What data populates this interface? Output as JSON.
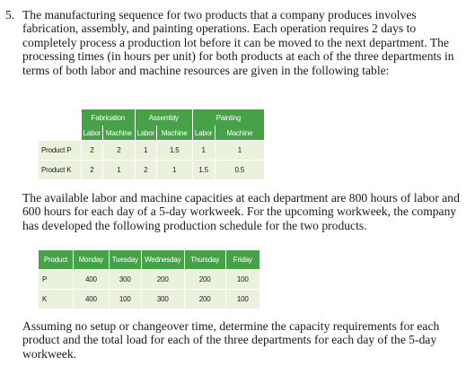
{
  "problem": {
    "number": "5.",
    "intro": "The manufacturing sequence for two products that a company produces involves fabrication, assembly, and painting operations. Each operation requires 2 days to completely process a production lot before it can be moved to the next department. The processing times (in hours per unit) for both products at each of the three departments in terms of both labor and machine resources are given in the following table:",
    "middle": "The available labor and machine capacities at each department are 800 hours of labor and 600 hours for each day of a 5-day workweek. For the upcoming workweek, the company has developed the following production schedule for the two products.",
    "closing": "Assuming no setup or changeover time, determine the capacity requirements for each product and the total load for each of the three departments for each day of the 5-day workweek."
  },
  "processing_table": {
    "departments": [
      "Fabrication",
      "Assembly",
      "Painting"
    ],
    "subheaders": [
      "Labor",
      "Machine",
      "Labor",
      "Machine",
      "Labor",
      "Machine"
    ],
    "rows": [
      {
        "product": "Product P",
        "values": [
          "2",
          "2",
          "1",
          "1.5",
          "1",
          "1"
        ]
      },
      {
        "product": "Product K",
        "values": [
          "2",
          "1",
          "2",
          "1",
          "1.5",
          "0.5"
        ]
      }
    ]
  },
  "schedule_table": {
    "headers": [
      "Product",
      "Monday",
      "Tuesday",
      "Wednesday",
      "Thursday",
      "Friday"
    ],
    "rows": [
      {
        "product": "P",
        "values": [
          "400",
          "300",
          "200",
          "200",
          "100"
        ]
      },
      {
        "product": "K",
        "values": [
          "400",
          "100",
          "300",
          "200",
          "100"
        ]
      }
    ]
  },
  "colors": {
    "header_green": "#46a148",
    "row_tint": "#eaf1dd"
  }
}
